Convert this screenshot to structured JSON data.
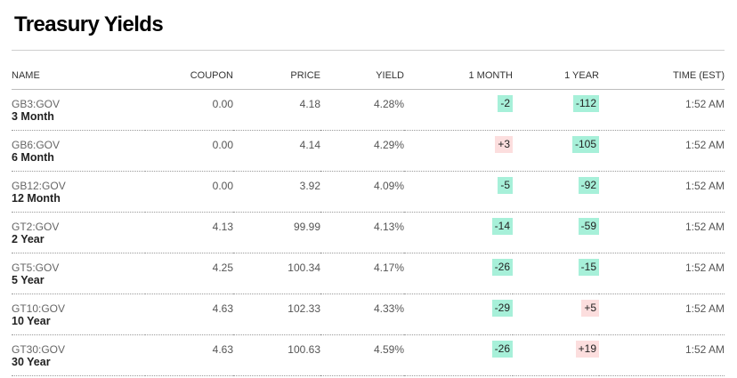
{
  "title": "Treasury Yields",
  "colors": {
    "negative_bg": "#a7f0d9",
    "positive_bg": "#fcdede"
  },
  "columns": {
    "name": "NAME",
    "coupon": "COUPON",
    "price": "PRICE",
    "yield": "YIELD",
    "month": "1 MONTH",
    "year": "1 YEAR",
    "time": "TIME (EST)"
  },
  "rows": [
    {
      "ticker": "GB3:GOV",
      "label": "3 Month",
      "coupon": "0.00",
      "price": "4.18",
      "yield": "4.28%",
      "month": "-2",
      "month_dir": "neg",
      "year": "-112",
      "year_dir": "neg",
      "time": "1:52 AM"
    },
    {
      "ticker": "GB6:GOV",
      "label": "6 Month",
      "coupon": "0.00",
      "price": "4.14",
      "yield": "4.29%",
      "month": "+3",
      "month_dir": "pos",
      "year": "-105",
      "year_dir": "neg",
      "time": "1:52 AM"
    },
    {
      "ticker": "GB12:GOV",
      "label": "12 Month",
      "coupon": "0.00",
      "price": "3.92",
      "yield": "4.09%",
      "month": "-5",
      "month_dir": "neg",
      "year": "-92",
      "year_dir": "neg",
      "time": "1:52 AM"
    },
    {
      "ticker": "GT2:GOV",
      "label": "2 Year",
      "coupon": "4.13",
      "price": "99.99",
      "yield": "4.13%",
      "month": "-14",
      "month_dir": "neg",
      "year": "-59",
      "year_dir": "neg",
      "time": "1:52 AM"
    },
    {
      "ticker": "GT5:GOV",
      "label": "5 Year",
      "coupon": "4.25",
      "price": "100.34",
      "yield": "4.17%",
      "month": "-26",
      "month_dir": "neg",
      "year": "-15",
      "year_dir": "neg",
      "time": "1:52 AM"
    },
    {
      "ticker": "GT10:GOV",
      "label": "10 Year",
      "coupon": "4.63",
      "price": "102.33",
      "yield": "4.33%",
      "month": "-29",
      "month_dir": "neg",
      "year": "+5",
      "year_dir": "pos",
      "time": "1:52 AM"
    },
    {
      "ticker": "GT30:GOV",
      "label": "30 Year",
      "coupon": "4.63",
      "price": "100.63",
      "yield": "4.59%",
      "month": "-26",
      "month_dir": "neg",
      "year": "+19",
      "year_dir": "pos",
      "time": "1:52 AM"
    }
  ]
}
